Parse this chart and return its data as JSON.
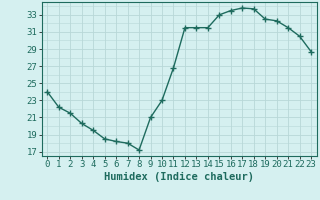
{
  "x": [
    0,
    1,
    2,
    3,
    4,
    5,
    6,
    7,
    8,
    9,
    10,
    11,
    12,
    13,
    14,
    15,
    16,
    17,
    18,
    19,
    20,
    21,
    22,
    23
  ],
  "y": [
    24.0,
    22.2,
    21.5,
    20.3,
    19.5,
    18.5,
    18.2,
    18.0,
    17.2,
    21.0,
    23.0,
    26.8,
    31.5,
    31.5,
    31.5,
    33.0,
    33.5,
    33.8,
    33.7,
    32.5,
    32.3,
    31.5,
    30.5,
    28.7
  ],
  "line_color": "#1e6b5e",
  "marker": "+",
  "marker_size": 4,
  "bg_color": "#d5f0f0",
  "grid_color": "#b8d8d8",
  "xlabel": "Humidex (Indice chaleur)",
  "ylim": [
    16.5,
    34.5
  ],
  "xlim": [
    -0.5,
    23.5
  ],
  "yticks": [
    17,
    19,
    21,
    23,
    25,
    27,
    29,
    31,
    33
  ],
  "xticks": [
    0,
    1,
    2,
    3,
    4,
    5,
    6,
    7,
    8,
    9,
    10,
    11,
    12,
    13,
    14,
    15,
    16,
    17,
    18,
    19,
    20,
    21,
    22,
    23
  ],
  "xlabel_fontsize": 7.5,
  "tick_fontsize": 6.5,
  "line_width": 1.0
}
